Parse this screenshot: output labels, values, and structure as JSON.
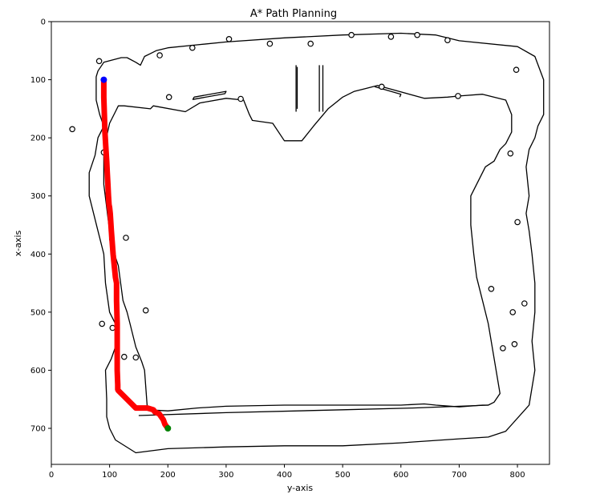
{
  "chart_data": {
    "type": "line",
    "title": "A* Path Planning",
    "xlabel": "y-axis",
    "ylabel": "x-axis",
    "xlim": [
      0,
      855
    ],
    "ylim": [
      762,
      0
    ],
    "x_ticks": [
      0,
      100,
      200,
      300,
      400,
      500,
      600,
      700,
      800
    ],
    "y_ticks": [
      0,
      100,
      200,
      300,
      400,
      500,
      600,
      700
    ],
    "grid": false,
    "legend": "none",
    "colors": {
      "path": "#ff0000",
      "start": "#0000ff",
      "goal": "#008000",
      "map": "#000000",
      "background": "#ffffff"
    },
    "series": [
      {
        "role": "path",
        "x": [
          90,
          90,
          91,
          92,
          94,
          95,
          96,
          97,
          98,
          99,
          100,
          101,
          103,
          106,
          110,
          112,
          112,
          113,
          113,
          113,
          114,
          114,
          115,
          130,
          145,
          165,
          175,
          178,
          185,
          192,
          195,
          200
        ],
        "y": [
          100,
          130,
          160,
          190,
          225,
          240,
          260,
          280,
          300,
          315,
          320,
          330,
          360,
          400,
          440,
          450,
          480,
          520,
          560,
          600,
          625,
          633,
          635,
          650,
          665,
          665,
          668,
          672,
          675,
          685,
          693,
          700
        ]
      }
    ],
    "points": [
      {
        "name": "start",
        "x": 90,
        "y": 100
      },
      {
        "name": "goal",
        "x": 200,
        "y": 700
      }
    ],
    "map_outer_boundary": {
      "x": [
        145,
        110,
        100,
        95,
        95,
        93,
        103,
        110,
        110,
        100,
        93,
        90,
        80,
        65,
        65,
        75,
        80,
        90,
        83,
        77,
        77,
        80,
        90,
        120,
        130,
        145,
        153,
        160,
        170,
        180,
        200,
        250,
        300,
        400,
        500,
        600,
        660,
        700,
        800,
        830,
        845,
        845,
        835,
        830,
        820,
        815,
        820,
        815,
        820,
        825,
        830,
        830,
        825,
        830,
        820,
        780,
        750,
        700,
        600,
        500,
        400,
        300,
        200
      ],
      "y": [
        742,
        720,
        700,
        680,
        650,
        600,
        580,
        560,
        520,
        500,
        450,
        400,
        360,
        300,
        260,
        230,
        200,
        180,
        160,
        135,
        95,
        85,
        70,
        62,
        62,
        70,
        75,
        60,
        55,
        50,
        45,
        40,
        35,
        28,
        23,
        20,
        23,
        33,
        43,
        60,
        100,
        160,
        180,
        200,
        220,
        250,
        300,
        330,
        360,
        400,
        450,
        500,
        550,
        600,
        660,
        705,
        715,
        718,
        725,
        730,
        730,
        732,
        735
      ]
    },
    "map_inner_boundary": {
      "x": [
        200,
        165,
        160,
        155,
        145,
        140,
        135,
        130,
        123,
        115,
        100,
        100,
        95,
        90,
        90,
        100,
        110,
        115,
        125,
        170,
        175,
        230,
        255,
        300,
        330,
        340,
        345,
        380,
        400,
        430,
        450,
        475,
        500,
        520,
        540,
        560,
        640,
        680,
        700,
        740,
        780,
        790,
        790,
        780,
        770,
        760,
        745,
        720,
        720,
        725,
        730,
        740,
        750,
        760,
        770,
        760,
        750,
        740,
        700,
        660,
        640,
        600,
        500,
        400,
        300,
        250
      ],
      "y": [
        670,
        668,
        600,
        585,
        560,
        540,
        520,
        500,
        480,
        420,
        375,
        360,
        320,
        280,
        220,
        175,
        155,
        145,
        145,
        150,
        145,
        155,
        140,
        132,
        135,
        160,
        170,
        175,
        205,
        205,
        180,
        150,
        130,
        120,
        115,
        110,
        132,
        130,
        128,
        125,
        135,
        160,
        190,
        210,
        220,
        240,
        250,
        300,
        350,
        400,
        440,
        480,
        520,
        580,
        640,
        655,
        660,
        660,
        663,
        660,
        658,
        660,
        660,
        660,
        662,
        665
      ]
    },
    "map_walls": [
      {
        "x": [
          420,
          420
        ],
        "y": [
          75,
          155
        ]
      },
      {
        "x": [
          422,
          422
        ],
        "y": [
          78,
          150
        ]
      },
      {
        "x": [
          466,
          466
        ],
        "y": [
          75,
          155
        ]
      },
      {
        "x": [
          460,
          460
        ],
        "y": [
          75,
          155
        ]
      },
      {
        "x": [
          245,
          300,
          298,
          243,
          245
        ],
        "y": [
          130,
          120,
          124,
          134,
          130
        ]
      },
      {
        "x": [
          555,
          600,
          598
        ],
        "y": [
          112,
          125,
          130
        ]
      },
      {
        "x": [
          150,
          300,
          500,
          620,
          750
        ],
        "y": [
          678,
          673,
          668,
          665,
          660
        ]
      }
    ],
    "obstacles": [
      {
        "x": 82,
        "y": 68
      },
      {
        "x": 186,
        "y": 58
      },
      {
        "x": 242,
        "y": 45
      },
      {
        "x": 305,
        "y": 30
      },
      {
        "x": 375,
        "y": 38
      },
      {
        "x": 445,
        "y": 38
      },
      {
        "x": 515,
        "y": 23
      },
      {
        "x": 583,
        "y": 26
      },
      {
        "x": 628,
        "y": 23
      },
      {
        "x": 680,
        "y": 32
      },
      {
        "x": 798,
        "y": 83
      },
      {
        "x": 36,
        "y": 185
      },
      {
        "x": 90,
        "y": 225
      },
      {
        "x": 202,
        "y": 130
      },
      {
        "x": 325,
        "y": 133
      },
      {
        "x": 567,
        "y": 112
      },
      {
        "x": 698,
        "y": 128
      },
      {
        "x": 788,
        "y": 227
      },
      {
        "x": 800,
        "y": 345
      },
      {
        "x": 128,
        "y": 372
      },
      {
        "x": 162,
        "y": 497
      },
      {
        "x": 87,
        "y": 520
      },
      {
        "x": 105,
        "y": 527
      },
      {
        "x": 125,
        "y": 577
      },
      {
        "x": 145,
        "y": 578
      },
      {
        "x": 755,
        "y": 460
      },
      {
        "x": 792,
        "y": 500
      },
      {
        "x": 812,
        "y": 485
      },
      {
        "x": 775,
        "y": 562
      },
      {
        "x": 795,
        "y": 555
      }
    ]
  }
}
